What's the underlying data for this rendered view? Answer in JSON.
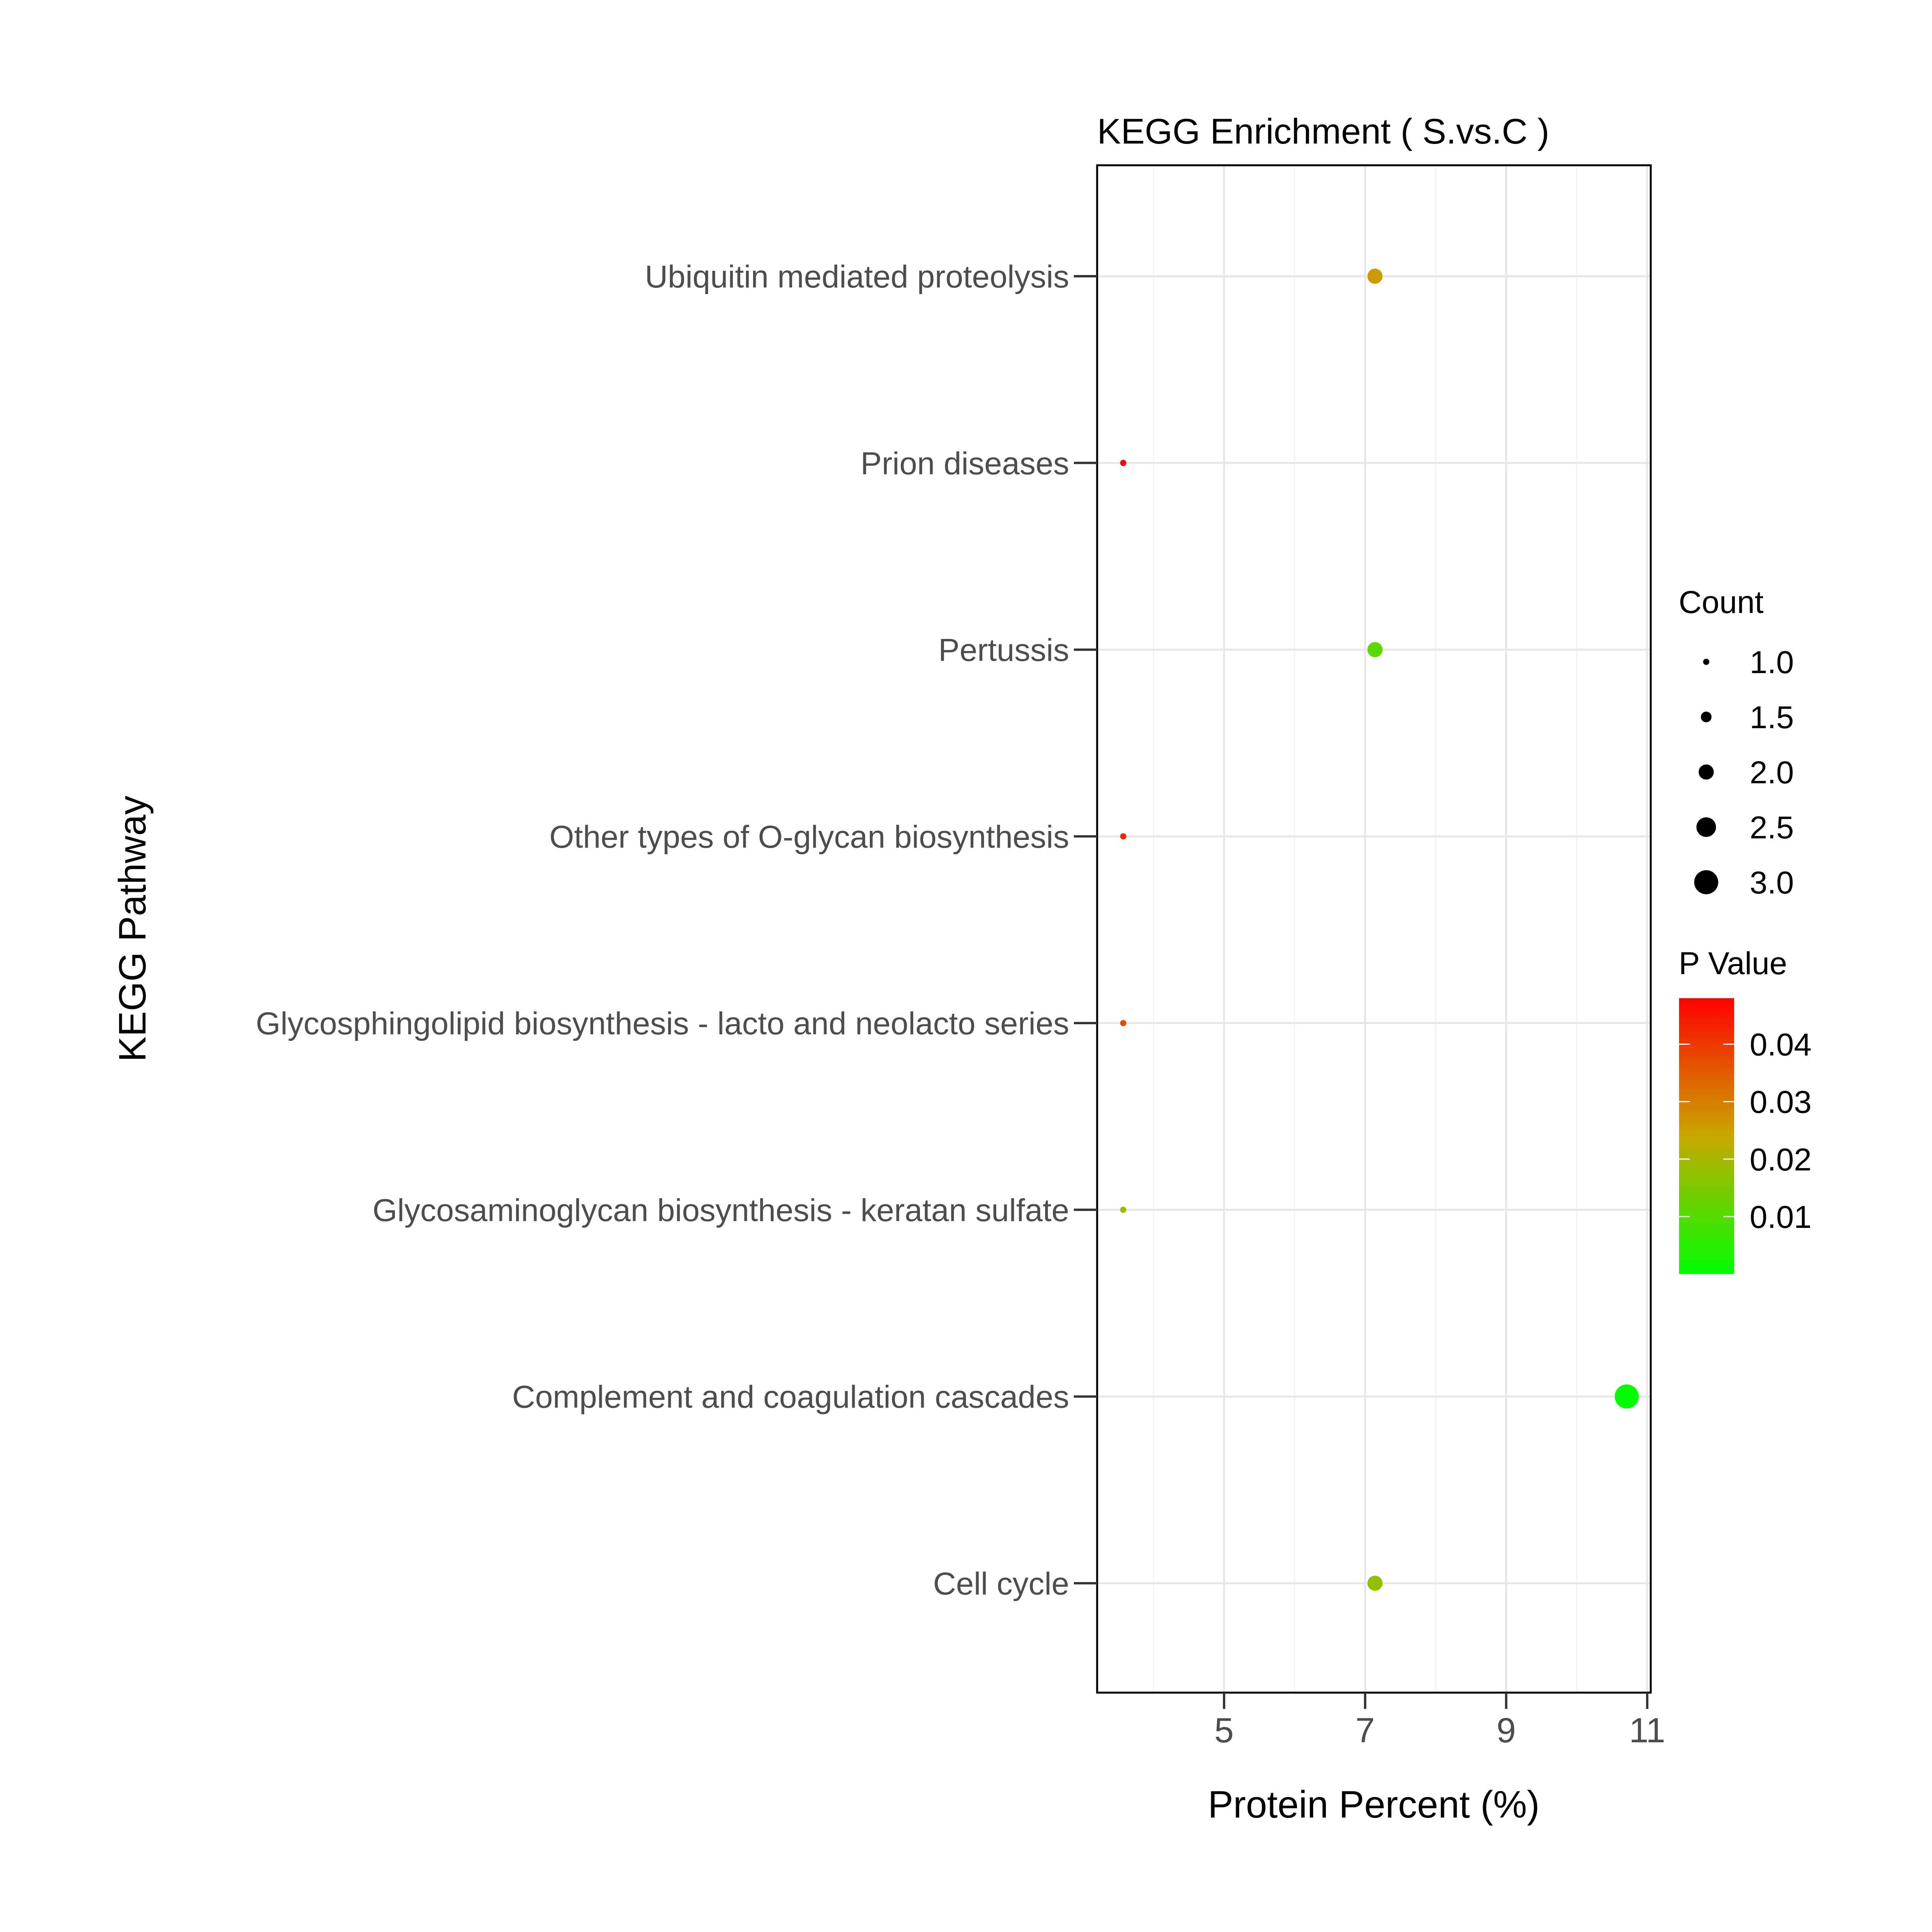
{
  "chart_data": {
    "type": "scatter",
    "title": "KEGG Enrichment ( S.vs.C )",
    "xlabel": "Protein Percent (%)",
    "ylabel": "KEGG Pathway",
    "xlim": [
      3.2,
      11.05
    ],
    "x_ticks": [
      "5",
      "7",
      "9",
      "11"
    ],
    "x_tick_values": [
      5,
      7,
      9,
      11
    ],
    "grid": true,
    "categories": [
      "Ubiquitin mediated proteolysis",
      "Prion diseases",
      "Pertussis",
      "Other types of O-glycan biosynthesis",
      "Glycosphingolipid biosynthesis - lacto and neolacto series",
      "Glycosaminoglycan biosynthesis - keratan sulfate",
      "Complement and coagulation cascades",
      "Cell cycle"
    ],
    "points": [
      {
        "pathway": "Ubiquitin mediated proteolysis",
        "x": 7.14,
        "count": 2,
        "p_value": 0.026
      },
      {
        "pathway": "Prion diseases",
        "x": 3.57,
        "count": 1,
        "p_value": 0.048
      },
      {
        "pathway": "Pertussis",
        "x": 7.14,
        "count": 2,
        "p_value": 0.011
      },
      {
        "pathway": "Other types of O-glycan biosynthesis",
        "x": 3.57,
        "count": 1,
        "p_value": 0.043
      },
      {
        "pathway": "Glycosphingolipid biosynthesis - lacto and neolacto series",
        "x": 3.57,
        "count": 1,
        "p_value": 0.038
      },
      {
        "pathway": "Glycosaminoglycan biosynthesis - keratan sulfate",
        "x": 3.57,
        "count": 1,
        "p_value": 0.018
      },
      {
        "pathway": "Complement and coagulation cascades",
        "x": 10.71,
        "count": 3,
        "p_value": 0.0005
      },
      {
        "pathway": "Cell cycle",
        "x": 7.14,
        "count": 2,
        "p_value": 0.018
      }
    ],
    "legend": {
      "placement": "right",
      "size_title": "Count",
      "size_entries": [
        {
          "label": "1.0",
          "value": 1.0
        },
        {
          "label": "1.5",
          "value": 1.5
        },
        {
          "label": "2.0",
          "value": 2.0
        },
        {
          "label": "2.5",
          "value": 2.5
        },
        {
          "label": "3.0",
          "value": 3.0
        }
      ],
      "color_title": "P Value",
      "color_range": [
        0.0,
        0.048
      ],
      "color_ticks": [
        {
          "label": "0.04",
          "value": 0.04
        },
        {
          "label": "0.03",
          "value": 0.03
        },
        {
          "label": "0.02",
          "value": 0.02
        },
        {
          "label": "0.01",
          "value": 0.01
        }
      ],
      "color_low": "#00ff00",
      "color_mid": "#c8a800",
      "color_high": "#ff0000"
    }
  }
}
